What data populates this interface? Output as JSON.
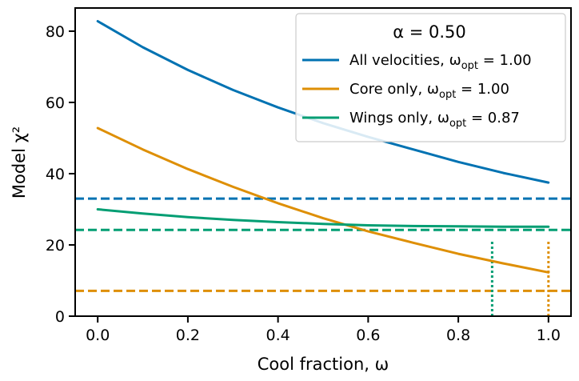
{
  "chart_data": {
    "type": "line",
    "x_label": "Cool fraction, ω",
    "y_label": "Model χ²",
    "xlim": [
      -0.05,
      1.05
    ],
    "ylim": [
      0,
      86.5
    ],
    "x_ticks": [
      "0.0",
      "0.2",
      "0.4",
      "0.6",
      "0.8",
      "1.0"
    ],
    "y_ticks": [
      "0",
      "20",
      "40",
      "60",
      "80"
    ],
    "legend": {
      "title": "α = 0.50",
      "position": "top-right",
      "entries": [
        {
          "prefix": "All velocities, ω",
          "sub": "opt",
          "suffix": " = 1.00"
        },
        {
          "prefix": "Core only, ω",
          "sub": "opt",
          "suffix": " = 1.00"
        },
        {
          "prefix": "Wings only, ω",
          "sub": "opt",
          "suffix": " = 0.87"
        }
      ]
    },
    "series": [
      {
        "name": "All velocities",
        "color": "#0072B2",
        "x": [
          0.0,
          0.1,
          0.2,
          0.3,
          0.4,
          0.5,
          0.6,
          0.7,
          0.8,
          0.9,
          1.0
        ],
        "y": [
          82.8,
          75.5,
          69.1,
          63.5,
          58.6,
          54.2,
          50.3,
          46.8,
          43.3,
          40.2,
          37.5
        ]
      },
      {
        "name": "Core only",
        "color": "#DE8F05",
        "x": [
          0.0,
          0.1,
          0.2,
          0.3,
          0.4,
          0.5,
          0.6,
          0.7,
          0.8,
          0.9,
          1.0
        ],
        "y": [
          52.8,
          46.8,
          41.3,
          36.3,
          31.7,
          27.5,
          23.8,
          20.6,
          17.5,
          14.8,
          12.3
        ]
      },
      {
        "name": "Wings only",
        "color": "#029E73",
        "x": [
          0.0,
          0.1,
          0.2,
          0.3,
          0.4,
          0.5,
          0.6,
          0.7,
          0.8,
          0.9,
          1.0
        ],
        "y": [
          30.0,
          28.8,
          27.8,
          27.0,
          26.4,
          25.9,
          25.5,
          25.3,
          25.2,
          25.1,
          25.1
        ]
      }
    ],
    "hlines": [
      {
        "y": 33.0,
        "color": "#0072B2",
        "style": "dashed"
      },
      {
        "y": 24.2,
        "color": "#029E73",
        "style": "dashed"
      },
      {
        "y": 7.1,
        "color": "#DE8F05",
        "style": "dashed"
      }
    ],
    "vlines": [
      {
        "x": 0.875,
        "y_top": 21.5,
        "color": "#029E73",
        "style": "dotted"
      },
      {
        "x": 1.0,
        "y_top": 21.5,
        "color": "#DE8F05",
        "style": "dotted"
      }
    ]
  }
}
